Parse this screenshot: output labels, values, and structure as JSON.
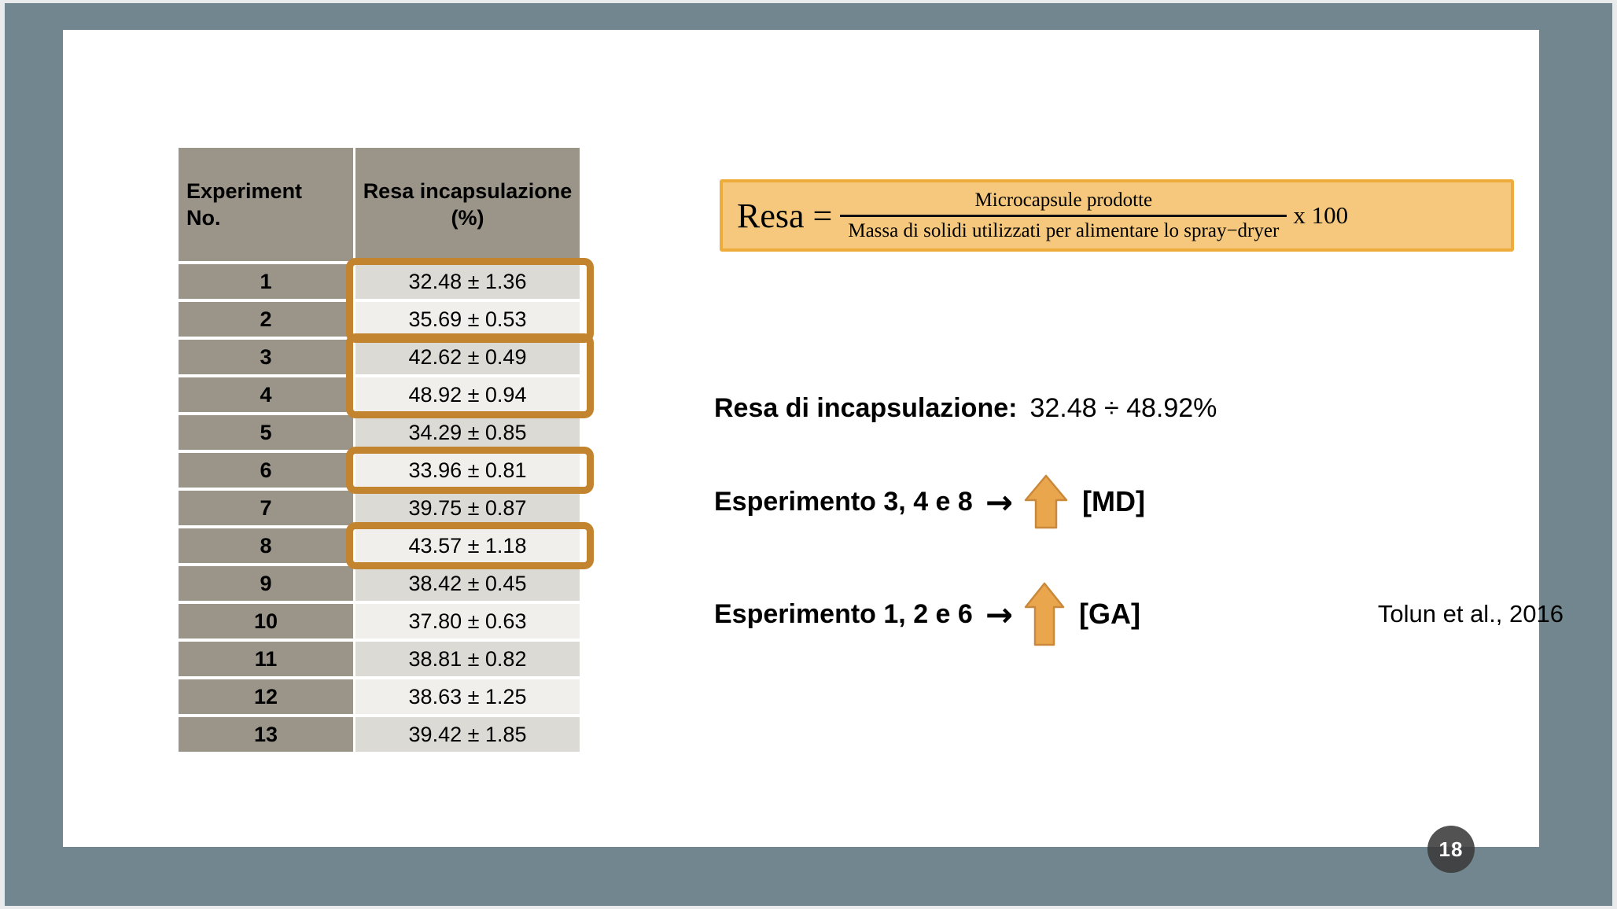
{
  "slide": {
    "page_number": "18"
  },
  "table": {
    "headers": {
      "col1": "Experiment No.",
      "col2": "Resa incapsulazione (%)"
    },
    "rows": [
      {
        "no": "1",
        "value": "32.48 ± 1.36"
      },
      {
        "no": "2",
        "value": "35.69 ± 0.53"
      },
      {
        "no": "3",
        "value": "42.62 ± 0.49"
      },
      {
        "no": "4",
        "value": "48.92 ± 0.94"
      },
      {
        "no": "5",
        "value": "34.29 ± 0.85"
      },
      {
        "no": "6",
        "value": "33.96 ± 0.81"
      },
      {
        "no": "7",
        "value": "39.75 ± 0.87"
      },
      {
        "no": "8",
        "value": "43.57 ± 1.18"
      },
      {
        "no": "9",
        "value": "38.42 ± 0.45"
      },
      {
        "no": "10",
        "value": "37.80 ± 0.63"
      },
      {
        "no": "11",
        "value": "38.81 ± 0.82"
      },
      {
        "no": "12",
        "value": "38.63 ± 1.25"
      },
      {
        "no": "13",
        "value": "39.42 ± 1.85"
      }
    ],
    "highlight_groups": [
      {
        "rows": [
          1,
          2
        ]
      },
      {
        "rows": [
          3,
          4
        ]
      },
      {
        "rows": [
          6
        ]
      },
      {
        "rows": [
          8
        ]
      }
    ]
  },
  "formula": {
    "lhs": "Resa =",
    "numerator": "Microcapsule prodotte",
    "denominator": "Massa di solidi utilizzati per alimentare lo spray−dryer",
    "multiplier": "x 100"
  },
  "notes": {
    "yield_label": "Resa di incapsulazione:",
    "yield_range": "32.48 ÷ 48.92%",
    "line_md": {
      "label": "Esperimento 3, 4 e 8",
      "arrow": "→",
      "tag": "[MD]"
    },
    "line_ga": {
      "label": "Esperimento 1, 2 e 6",
      "arrow": "→",
      "tag": "[GA]"
    },
    "citation": "Tolun et al., 2016"
  },
  "colors": {
    "canvas_background": "#71868E",
    "outer_frame": "#E8EAEC",
    "slide_background": "#FFFFFF",
    "table_header_cell": "#9B9489",
    "table_value_row_dark": "#DCDAD5",
    "table_value_row_light": "#F0EFEC",
    "highlight_border": "#C2842E",
    "formula_fill": "#F5C87D",
    "formula_border": "#EEAD3B",
    "arrow_fill": "#E9A64C",
    "arrow_outline": "#C9883A",
    "page_circle": "#3A3A3A"
  }
}
